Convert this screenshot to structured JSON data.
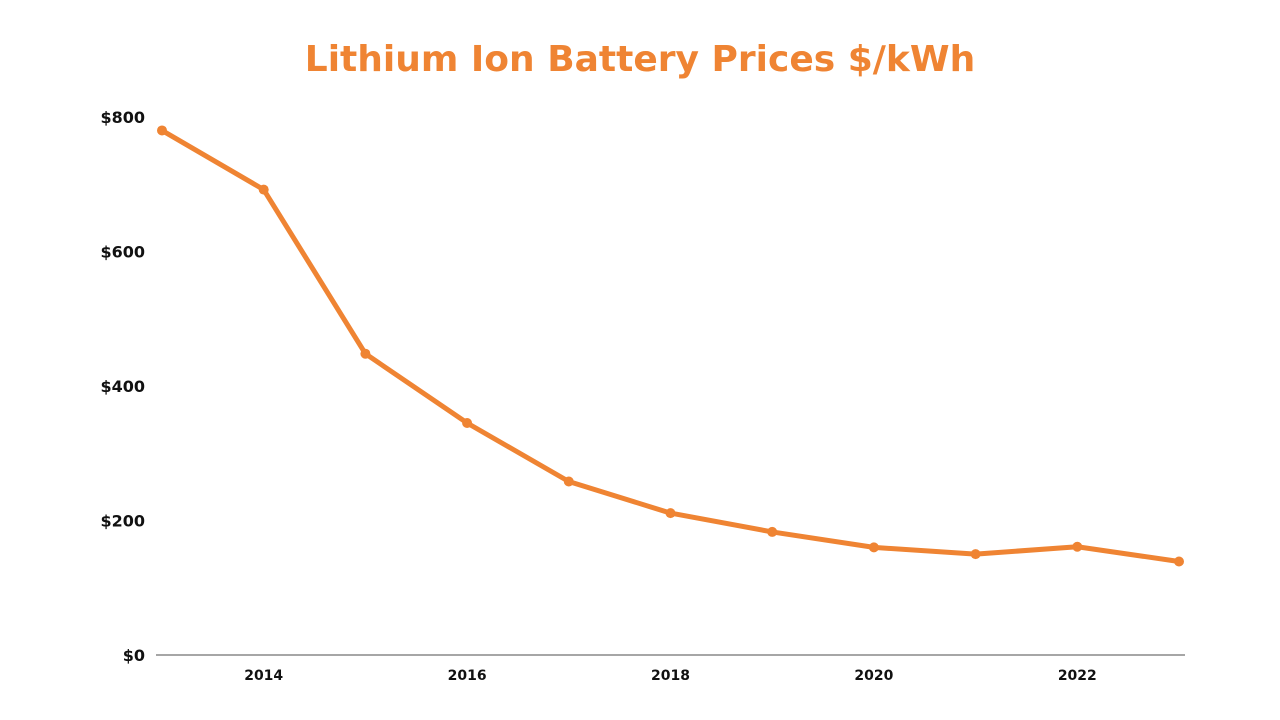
{
  "colors": {
    "series": "#ef8433",
    "title": "#ef8433",
    "axis": "#888888",
    "text": "#111111"
  },
  "chart_data": {
    "type": "line",
    "title": "Lithium Ion Battery Prices $/kWh",
    "xlabel": "",
    "ylabel": "",
    "x": [
      2013,
      2014,
      2015,
      2016,
      2017,
      2018,
      2019,
      2020,
      2021,
      2022,
      2023
    ],
    "series": [
      {
        "values": [
          780,
          692,
          448,
          345,
          258,
          211,
          183,
          160,
          150,
          161,
          139
        ]
      }
    ],
    "xlim": [
      2013,
      2023
    ],
    "ylim": [
      0,
      800
    ],
    "x_ticks": [
      2014,
      2016,
      2018,
      2020,
      2022
    ],
    "x_tick_labels": [
      "2014",
      "2016",
      "2018",
      "2020",
      "2022"
    ],
    "y_ticks": [
      0,
      200,
      400,
      600,
      800
    ],
    "y_tick_labels": [
      "$0",
      "$200",
      "$400",
      "$600",
      "$800"
    ],
    "grid": false,
    "legend": "none",
    "markers": true
  }
}
